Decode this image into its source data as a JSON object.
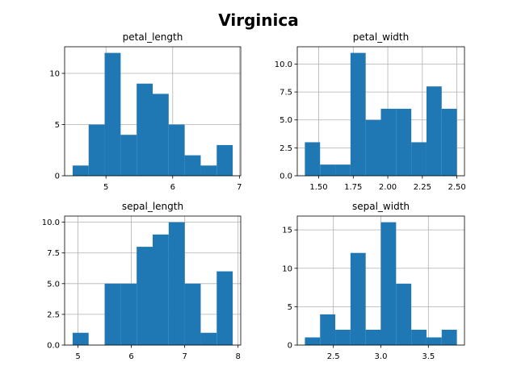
{
  "suptitle": "Virginica",
  "bar_color": "#1f77b4",
  "grid": true,
  "chart_data": [
    {
      "type": "bar",
      "title": "petal_length",
      "bin_edges": [
        4.5,
        4.74,
        4.98,
        5.22,
        5.46,
        5.7,
        5.94,
        6.18,
        6.42,
        6.66,
        6.9
      ],
      "values": [
        1,
        5,
        12,
        4,
        9,
        8,
        5,
        2,
        1,
        3
      ],
      "xlim": [
        4.38,
        7.02
      ],
      "ylim": [
        0,
        12.6
      ],
      "xticks": [
        5,
        6,
        7
      ],
      "xtick_labels": [
        "5",
        "6",
        "7"
      ],
      "yticks": [
        0,
        5,
        10
      ],
      "ytick_labels": [
        "0",
        "5",
        "10"
      ],
      "grid": true
    },
    {
      "type": "bar",
      "title": "petal_width",
      "bin_edges": [
        1.4,
        1.51,
        1.62,
        1.73,
        1.84,
        1.95,
        2.06,
        2.17,
        2.28,
        2.39,
        2.5
      ],
      "values": [
        3,
        1,
        1,
        11,
        5,
        6,
        6,
        3,
        8,
        6
      ],
      "xlim": [
        1.345,
        2.555
      ],
      "ylim": [
        0,
        11.55
      ],
      "xticks": [
        1.5,
        1.75,
        2.0,
        2.25,
        2.5
      ],
      "xtick_labels": [
        "1.50",
        "1.75",
        "2.00",
        "2.25",
        "2.50"
      ],
      "yticks": [
        0,
        2.5,
        5,
        7.5,
        10
      ],
      "ytick_labels": [
        "0.0",
        "2.5",
        "5.0",
        "7.5",
        "10.0"
      ],
      "grid": true
    },
    {
      "type": "bar",
      "title": "sepal_length",
      "bin_edges": [
        4.9,
        5.2,
        5.5,
        5.8,
        6.1,
        6.4,
        6.7,
        7.0,
        7.3,
        7.6,
        7.9
      ],
      "values": [
        1,
        0,
        5,
        5,
        8,
        9,
        10,
        5,
        1,
        6
      ],
      "xlim": [
        4.75,
        8.05
      ],
      "ylim": [
        0,
        10.5
      ],
      "xticks": [
        5,
        6,
        7,
        8
      ],
      "xtick_labels": [
        "5",
        "6",
        "7",
        "8"
      ],
      "yticks": [
        0,
        2.5,
        5,
        7.5,
        10
      ],
      "ytick_labels": [
        "0.0",
        "2.5",
        "5.0",
        "7.5",
        "10.0"
      ],
      "grid": true
    },
    {
      "type": "bar",
      "title": "sepal_width",
      "bin_edges": [
        2.2,
        2.36,
        2.52,
        2.68,
        2.84,
        3.0,
        3.16,
        3.32,
        3.48,
        3.64,
        3.8
      ],
      "values": [
        1,
        4,
        2,
        12,
        2,
        16,
        8,
        2,
        1,
        2
      ],
      "xlim": [
        2.12,
        3.88
      ],
      "ylim": [
        0,
        16.8
      ],
      "xticks": [
        2.5,
        3.0,
        3.5
      ],
      "xtick_labels": [
        "2.5",
        "3.0",
        "3.5"
      ],
      "yticks": [
        0,
        5,
        10,
        15
      ],
      "ytick_labels": [
        "0",
        "5",
        "10",
        "15"
      ],
      "grid": true
    }
  ]
}
